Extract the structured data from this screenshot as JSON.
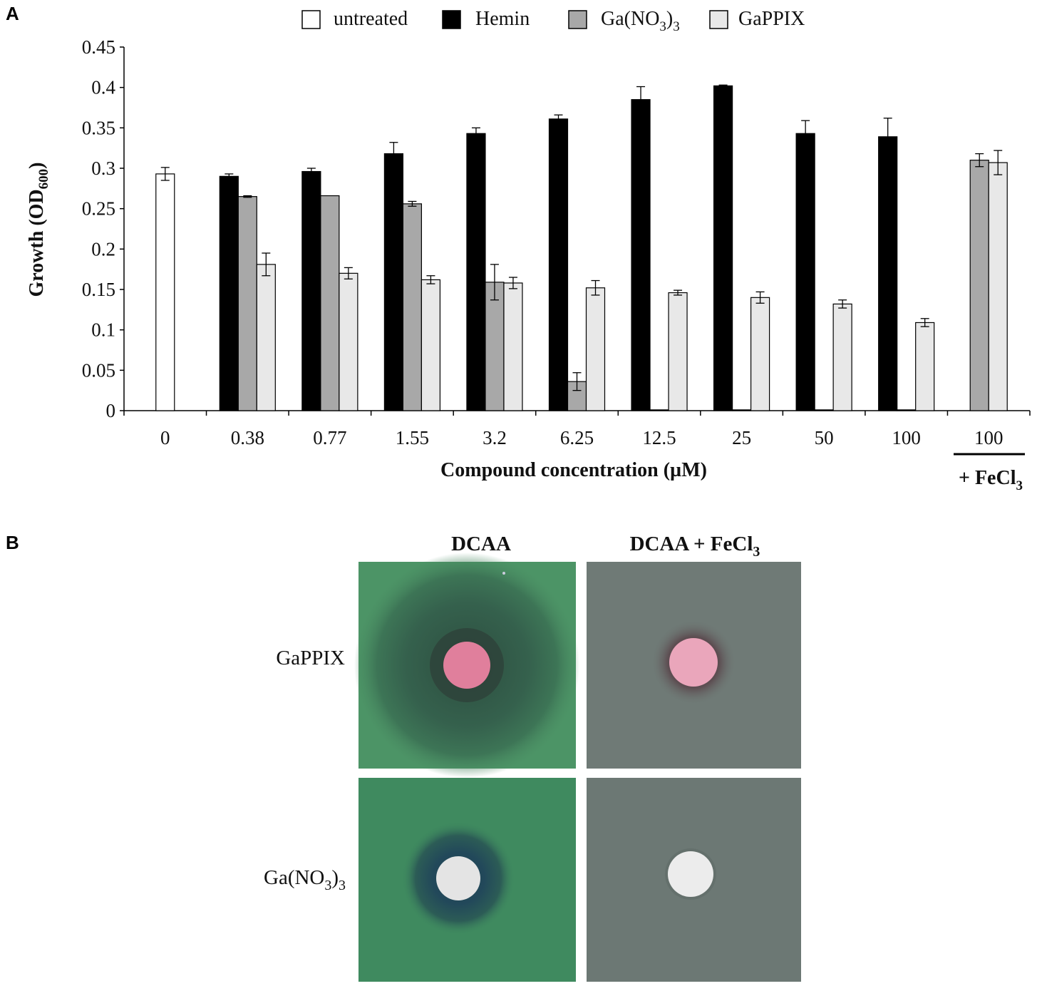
{
  "panel_a": {
    "letter": "A",
    "chart_data": {
      "type": "bar",
      "categories": [
        "0",
        "0.38",
        "0.77",
        "1.55",
        "3.2",
        "6.25",
        "12.5",
        "25",
        "50",
        "100",
        "100"
      ],
      "last_group_note": "+ FeCl",
      "last_group_note_sub": "3",
      "ylim": [
        0,
        0.45
      ],
      "yticks": [
        "0",
        "0.05",
        "0.1",
        "0.15",
        "0.2",
        "0.25",
        "0.3",
        "0.35",
        "0.4",
        "0.45"
      ],
      "ylabel_main": "Growth (OD",
      "ylabel_sub": "600",
      "ylabel_end": ")",
      "xlabel": "Compound concentration (µM)",
      "legend_position": "top",
      "series": [
        {
          "name": "untreated",
          "color": "#ffffff",
          "values": [
            0.293,
            null,
            null,
            null,
            null,
            null,
            null,
            null,
            null,
            null,
            null
          ],
          "errors": [
            0.008,
            null,
            null,
            null,
            null,
            null,
            null,
            null,
            null,
            null,
            null
          ]
        },
        {
          "name": "Hemin",
          "color": "#000000",
          "values": [
            null,
            0.29,
            0.296,
            0.318,
            0.343,
            0.361,
            0.385,
            0.402,
            0.343,
            0.339,
            null
          ],
          "errors": [
            null,
            0.003,
            0.004,
            0.014,
            0.007,
            0.005,
            0.016,
            0.001,
            0.016,
            0.023,
            null
          ]
        },
        {
          "name": "Ga(NO",
          "name_sub": "3",
          "name_end": ")",
          "name_sub2": "3",
          "color": "#a8a8a8",
          "values": [
            null,
            0.265,
            0.266,
            0.256,
            0.159,
            0.036,
            0.001,
            0.001,
            0.001,
            0.001,
            0.31
          ],
          "errors": [
            null,
            0.001,
            0.0,
            0.003,
            0.022,
            0.011,
            0.0,
            0.0,
            0.0,
            0.0,
            0.008
          ]
        },
        {
          "name": "GaPPIX",
          "color": "#e8e8e8",
          "values": [
            null,
            0.181,
            0.17,
            0.162,
            0.158,
            0.152,
            0.146,
            0.14,
            0.132,
            0.109,
            0.307
          ],
          "errors": [
            null,
            0.014,
            0.007,
            0.005,
            0.007,
            0.009,
            0.003,
            0.007,
            0.005,
            0.005,
            0.015
          ]
        }
      ]
    }
  },
  "panel_b": {
    "letter": "B",
    "columns": [
      "DCAA",
      "DCAA + FeCl"
    ],
    "columns_sub": [
      "",
      "3"
    ],
    "rows": [
      {
        "label": "GaPPIX",
        "label_sub": "",
        "label_end": "",
        "disk_color": "#e07f9c"
      },
      {
        "label": "Ga(NO",
        "label_sub": "3",
        "label_end": ")",
        "label_sub2": "3",
        "disk_color": "#e6e6e6"
      }
    ],
    "colors": {
      "dcaa_plate": "#3f7d5a",
      "fecl3_plate": "#6f7a76"
    }
  }
}
